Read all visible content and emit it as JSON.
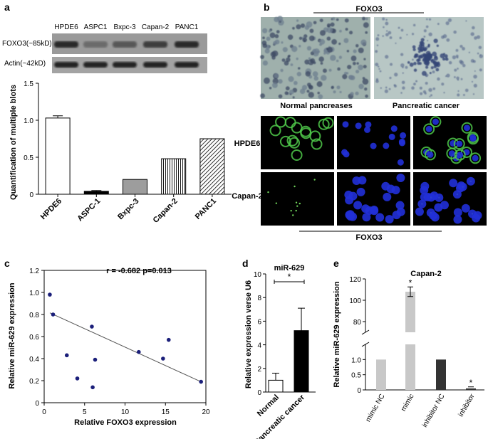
{
  "panels": {
    "a": {
      "label": "a",
      "blot": {
        "lanes": [
          "HPDE6",
          "ASPC1",
          "Bxpc-3",
          "Capan-2",
          "PANC1"
        ],
        "rows": [
          "FOXO3(~85kD)",
          "Actin(~42kD)"
        ],
        "foxo3_intensity": [
          0.85,
          0.35,
          0.5,
          0.7,
          0.85
        ]
      }
    },
    "b": {
      "label": "b",
      "ihc_title": "FOXO3",
      "ihc_captions": [
        "Normal pancreases",
        "Pancreatic cancer"
      ],
      "if_rows": [
        "HPDE6",
        "Capan-2"
      ],
      "if_footer": "FOXO3"
    },
    "c": {
      "label": "c",
      "annotation": "r = -0.682 p=0.013"
    },
    "d": {
      "label": "d",
      "title": "miR-629",
      "sig": "*"
    },
    "e": {
      "label": "e",
      "title": "Capan-2"
    }
  },
  "chart_data": [
    {
      "id": "a",
      "type": "bar",
      "categories": [
        "HPDE6",
        "ASPC-1",
        "Bxpc-3",
        "Capan-2",
        "PANC1"
      ],
      "values": [
        1.03,
        0.04,
        0.2,
        0.48,
        0.75
      ],
      "errors": [
        0.03,
        0.01,
        0.0,
        0.0,
        0.0
      ],
      "fills": [
        "white",
        "black",
        "gray",
        "vertical-stripes",
        "diagonal-stripes"
      ],
      "ylabel": "Quantification of multiple blots",
      "ylim": [
        0,
        1.5
      ],
      "yticks": [
        "0",
        "0.5",
        "1.0",
        "1.5"
      ],
      "grid": false
    },
    {
      "id": "c",
      "type": "scatter",
      "x": [
        0.7,
        1.1,
        2.8,
        4.1,
        5.9,
        6.0,
        6.3,
        11.7,
        14.7,
        15.4,
        19.4
      ],
      "y": [
        0.98,
        0.8,
        0.43,
        0.22,
        0.69,
        0.14,
        0.39,
        0.46,
        0.4,
        0.57,
        0.19
      ],
      "xlabel": "Relative FOXO3 expression",
      "ylabel": "Relative miR-629 expression",
      "xlim": [
        0,
        20
      ],
      "ylim": [
        0,
        1.2
      ],
      "xticks": [
        "0",
        "5",
        "10",
        "15",
        "20"
      ],
      "yticks": [
        "0",
        "0.2",
        "0.4",
        "0.6",
        "0.8",
        "1.0",
        "1.2"
      ],
      "trendline": [
        [
          0.7,
          0.815
        ],
        [
          19.4,
          0.19
        ]
      ]
    },
    {
      "id": "d",
      "type": "bar",
      "categories": [
        "Normal",
        "Pancreatic cancer"
      ],
      "values": [
        1.0,
        5.2
      ],
      "errors": [
        0.6,
        1.9
      ],
      "fills": [
        "white",
        "black"
      ],
      "ylabel": "Relative expression verse U6",
      "ylim": [
        0,
        10
      ],
      "yticks": [
        "0",
        "2",
        "4",
        "6",
        "8",
        "10"
      ]
    },
    {
      "id": "e",
      "type": "bar",
      "categories": [
        "mimic NC",
        "mimic",
        "inhibitor NC",
        "inhibitor"
      ],
      "values": [
        1.0,
        108,
        1.0,
        0.05
      ],
      "errors": [
        0,
        4.5,
        0,
        0.02
      ],
      "fills": [
        "#c8c8c8",
        "#c8c8c8",
        "#333333",
        "#333333"
      ],
      "significance": [
        "",
        "*",
        "",
        "*"
      ],
      "ylabel": "Relative miR-629 expression",
      "ylim_lower": [
        0,
        1.5
      ],
      "ylim_upper": [
        70,
        120
      ],
      "yticks_lower": [
        "0",
        "0.5",
        "1.0"
      ],
      "yticks_upper": [
        "80",
        "100",
        "120"
      ]
    }
  ]
}
